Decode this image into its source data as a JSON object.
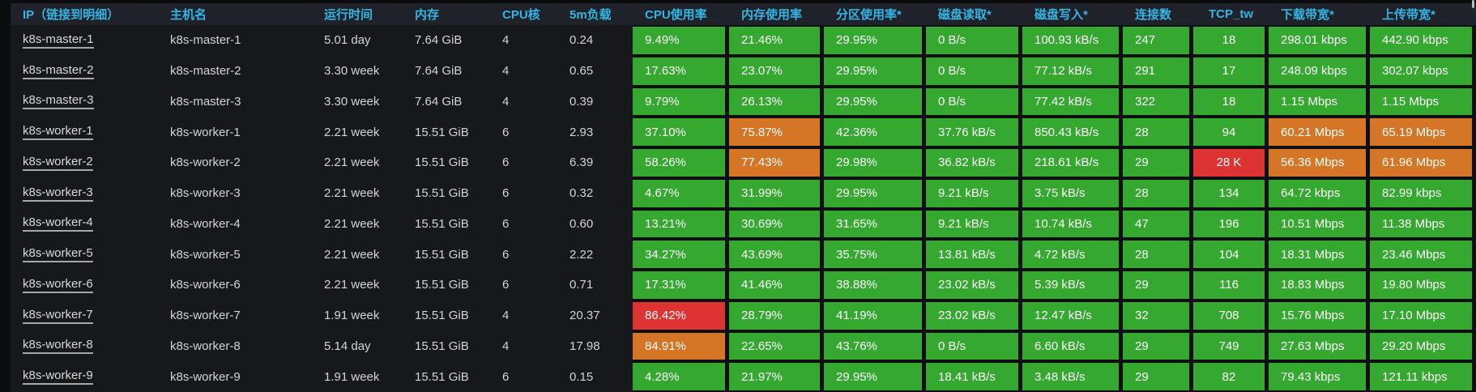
{
  "colors": {
    "green": "#34a82f",
    "orange": "#d57526",
    "red": "#de3333",
    "header_text": "#33b5e5"
  },
  "table": {
    "columns": [
      {
        "key": "ip",
        "label": "IP（链接到明细）",
        "kind": "link"
      },
      {
        "key": "hostname",
        "label": "主机名",
        "kind": "text"
      },
      {
        "key": "uptime",
        "label": "运行时间",
        "kind": "text"
      },
      {
        "key": "memory",
        "label": "内存",
        "kind": "text"
      },
      {
        "key": "cpu_cores",
        "label": "CPU核",
        "kind": "text"
      },
      {
        "key": "load_5m",
        "label": "5m负载",
        "kind": "text"
      },
      {
        "key": "cpu_usage",
        "label": "CPU使用率",
        "kind": "metric"
      },
      {
        "key": "mem_usage",
        "label": "内存使用率",
        "kind": "metric"
      },
      {
        "key": "partition_usage",
        "label": "分区使用率*",
        "kind": "metric"
      },
      {
        "key": "disk_read",
        "label": "磁盘读取*",
        "kind": "metric"
      },
      {
        "key": "disk_write",
        "label": "磁盘写入*",
        "kind": "metric"
      },
      {
        "key": "connections",
        "label": "连接数",
        "kind": "metric"
      },
      {
        "key": "tcp_tw",
        "label": "TCP_tw",
        "kind": "metric",
        "align": "center"
      },
      {
        "key": "download_bw",
        "label": "下载带宽*",
        "kind": "metric"
      },
      {
        "key": "upload_bw",
        "label": "上传带宽*",
        "kind": "metric"
      }
    ],
    "rows": [
      {
        "ip": "k8s-master-1",
        "hostname": "k8s-master-1",
        "uptime": "5.01 day",
        "memory": "7.64 GiB",
        "cpu_cores": "4",
        "load_5m": "0.24",
        "cpu_usage": {
          "value": "9.49%",
          "status": "green"
        },
        "mem_usage": {
          "value": "21.46%",
          "status": "green"
        },
        "partition_usage": {
          "value": "29.95%",
          "status": "green"
        },
        "disk_read": {
          "value": "0 B/s",
          "status": "green"
        },
        "disk_write": {
          "value": "100.93 kB/s",
          "status": "green"
        },
        "connections": {
          "value": "247",
          "status": "green"
        },
        "tcp_tw": {
          "value": "18",
          "status": "green"
        },
        "download_bw": {
          "value": "298.01 kbps",
          "status": "green"
        },
        "upload_bw": {
          "value": "442.90 kbps",
          "status": "green"
        }
      },
      {
        "ip": "k8s-master-2",
        "hostname": "k8s-master-2",
        "uptime": "3.30 week",
        "memory": "7.64 GiB",
        "cpu_cores": "4",
        "load_5m": "0.65",
        "cpu_usage": {
          "value": "17.63%",
          "status": "green"
        },
        "mem_usage": {
          "value": "23.07%",
          "status": "green"
        },
        "partition_usage": {
          "value": "29.95%",
          "status": "green"
        },
        "disk_read": {
          "value": "0 B/s",
          "status": "green"
        },
        "disk_write": {
          "value": "77.12 kB/s",
          "status": "green"
        },
        "connections": {
          "value": "291",
          "status": "green"
        },
        "tcp_tw": {
          "value": "17",
          "status": "green"
        },
        "download_bw": {
          "value": "248.09 kbps",
          "status": "green"
        },
        "upload_bw": {
          "value": "302.07 kbps",
          "status": "green"
        }
      },
      {
        "ip": "k8s-master-3",
        "hostname": "k8s-master-3",
        "uptime": "3.30 week",
        "memory": "7.64 GiB",
        "cpu_cores": "4",
        "load_5m": "0.39",
        "cpu_usage": {
          "value": "9.79%",
          "status": "green"
        },
        "mem_usage": {
          "value": "26.13%",
          "status": "green"
        },
        "partition_usage": {
          "value": "29.95%",
          "status": "green"
        },
        "disk_read": {
          "value": "0 B/s",
          "status": "green"
        },
        "disk_write": {
          "value": "77.42 kB/s",
          "status": "green"
        },
        "connections": {
          "value": "322",
          "status": "green"
        },
        "tcp_tw": {
          "value": "18",
          "status": "green"
        },
        "download_bw": {
          "value": "1.15 Mbps",
          "status": "green"
        },
        "upload_bw": {
          "value": "1.15 Mbps",
          "status": "green"
        }
      },
      {
        "ip": "k8s-worker-1",
        "hostname": "k8s-worker-1",
        "uptime": "2.21 week",
        "memory": "15.51 GiB",
        "cpu_cores": "6",
        "load_5m": "2.93",
        "cpu_usage": {
          "value": "37.10%",
          "status": "green"
        },
        "mem_usage": {
          "value": "75.87%",
          "status": "orange"
        },
        "partition_usage": {
          "value": "42.36%",
          "status": "green"
        },
        "disk_read": {
          "value": "37.76 kB/s",
          "status": "green"
        },
        "disk_write": {
          "value": "850.43 kB/s",
          "status": "green"
        },
        "connections": {
          "value": "28",
          "status": "green"
        },
        "tcp_tw": {
          "value": "94",
          "status": "green"
        },
        "download_bw": {
          "value": "60.21 Mbps",
          "status": "orange"
        },
        "upload_bw": {
          "value": "65.19 Mbps",
          "status": "orange"
        }
      },
      {
        "ip": "k8s-worker-2",
        "hostname": "k8s-worker-2",
        "uptime": "2.21 week",
        "memory": "15.51 GiB",
        "cpu_cores": "6",
        "load_5m": "6.39",
        "cpu_usage": {
          "value": "58.26%",
          "status": "green"
        },
        "mem_usage": {
          "value": "77.43%",
          "status": "orange"
        },
        "partition_usage": {
          "value": "29.98%",
          "status": "green"
        },
        "disk_read": {
          "value": "36.82 kB/s",
          "status": "green"
        },
        "disk_write": {
          "value": "218.61 kB/s",
          "status": "green"
        },
        "connections": {
          "value": "29",
          "status": "green"
        },
        "tcp_tw": {
          "value": "28 K",
          "status": "red"
        },
        "download_bw": {
          "value": "56.36 Mbps",
          "status": "orange"
        },
        "upload_bw": {
          "value": "61.96 Mbps",
          "status": "orange"
        }
      },
      {
        "ip": "k8s-worker-3",
        "hostname": "k8s-worker-3",
        "uptime": "2.21 week",
        "memory": "15.51 GiB",
        "cpu_cores": "6",
        "load_5m": "0.32",
        "cpu_usage": {
          "value": "4.67%",
          "status": "green"
        },
        "mem_usage": {
          "value": "31.99%",
          "status": "green"
        },
        "partition_usage": {
          "value": "29.95%",
          "status": "green"
        },
        "disk_read": {
          "value": "9.21 kB/s",
          "status": "green"
        },
        "disk_write": {
          "value": "3.75 kB/s",
          "status": "green"
        },
        "connections": {
          "value": "28",
          "status": "green"
        },
        "tcp_tw": {
          "value": "134",
          "status": "green"
        },
        "download_bw": {
          "value": "64.72 kbps",
          "status": "green"
        },
        "upload_bw": {
          "value": "82.99 kbps",
          "status": "green"
        }
      },
      {
        "ip": "k8s-worker-4",
        "hostname": "k8s-worker-4",
        "uptime": "2.21 week",
        "memory": "15.51 GiB",
        "cpu_cores": "6",
        "load_5m": "0.60",
        "cpu_usage": {
          "value": "13.21%",
          "status": "green"
        },
        "mem_usage": {
          "value": "30.69%",
          "status": "green"
        },
        "partition_usage": {
          "value": "31.65%",
          "status": "green"
        },
        "disk_read": {
          "value": "9.21 kB/s",
          "status": "green"
        },
        "disk_write": {
          "value": "10.74 kB/s",
          "status": "green"
        },
        "connections": {
          "value": "47",
          "status": "green"
        },
        "tcp_tw": {
          "value": "196",
          "status": "green"
        },
        "download_bw": {
          "value": "10.51 Mbps",
          "status": "green"
        },
        "upload_bw": {
          "value": "11.38 Mbps",
          "status": "green"
        }
      },
      {
        "ip": "k8s-worker-5",
        "hostname": "k8s-worker-5",
        "uptime": "2.21 week",
        "memory": "15.51 GiB",
        "cpu_cores": "6",
        "load_5m": "2.22",
        "cpu_usage": {
          "value": "34.27%",
          "status": "green"
        },
        "mem_usage": {
          "value": "43.69%",
          "status": "green"
        },
        "partition_usage": {
          "value": "35.75%",
          "status": "green"
        },
        "disk_read": {
          "value": "13.81 kB/s",
          "status": "green"
        },
        "disk_write": {
          "value": "4.72 kB/s",
          "status": "green"
        },
        "connections": {
          "value": "28",
          "status": "green"
        },
        "tcp_tw": {
          "value": "104",
          "status": "green"
        },
        "download_bw": {
          "value": "18.31 Mbps",
          "status": "green"
        },
        "upload_bw": {
          "value": "23.46 Mbps",
          "status": "green"
        }
      },
      {
        "ip": "k8s-worker-6",
        "hostname": "k8s-worker-6",
        "uptime": "2.21 week",
        "memory": "15.51 GiB",
        "cpu_cores": "6",
        "load_5m": "0.71",
        "cpu_usage": {
          "value": "17.31%",
          "status": "green"
        },
        "mem_usage": {
          "value": "41.46%",
          "status": "green"
        },
        "partition_usage": {
          "value": "38.88%",
          "status": "green"
        },
        "disk_read": {
          "value": "23.02 kB/s",
          "status": "green"
        },
        "disk_write": {
          "value": "5.39 kB/s",
          "status": "green"
        },
        "connections": {
          "value": "29",
          "status": "green"
        },
        "tcp_tw": {
          "value": "116",
          "status": "green"
        },
        "download_bw": {
          "value": "18.83 Mbps",
          "status": "green"
        },
        "upload_bw": {
          "value": "19.80 Mbps",
          "status": "green"
        }
      },
      {
        "ip": "k8s-worker-7",
        "hostname": "k8s-worker-7",
        "uptime": "1.91 week",
        "memory": "15.51 GiB",
        "cpu_cores": "4",
        "load_5m": "20.37",
        "cpu_usage": {
          "value": "86.42%",
          "status": "red"
        },
        "mem_usage": {
          "value": "28.79%",
          "status": "green"
        },
        "partition_usage": {
          "value": "41.19%",
          "status": "green"
        },
        "disk_read": {
          "value": "23.02 kB/s",
          "status": "green"
        },
        "disk_write": {
          "value": "12.47 kB/s",
          "status": "green"
        },
        "connections": {
          "value": "32",
          "status": "green"
        },
        "tcp_tw": {
          "value": "708",
          "status": "green"
        },
        "download_bw": {
          "value": "15.76 Mbps",
          "status": "green"
        },
        "upload_bw": {
          "value": "17.10 Mbps",
          "status": "green"
        }
      },
      {
        "ip": "k8s-worker-8",
        "hostname": "k8s-worker-8",
        "uptime": "5.14 day",
        "memory": "15.51 GiB",
        "cpu_cores": "4",
        "load_5m": "17.98",
        "cpu_usage": {
          "value": "84.91%",
          "status": "orange"
        },
        "mem_usage": {
          "value": "22.65%",
          "status": "green"
        },
        "partition_usage": {
          "value": "43.76%",
          "status": "green"
        },
        "disk_read": {
          "value": "0 B/s",
          "status": "green"
        },
        "disk_write": {
          "value": "6.60 kB/s",
          "status": "green"
        },
        "connections": {
          "value": "29",
          "status": "green"
        },
        "tcp_tw": {
          "value": "749",
          "status": "green"
        },
        "download_bw": {
          "value": "27.63 Mbps",
          "status": "green"
        },
        "upload_bw": {
          "value": "29.20 Mbps",
          "status": "green"
        }
      },
      {
        "ip": "k8s-worker-9",
        "hostname": "k8s-worker-9",
        "uptime": "1.91 week",
        "memory": "15.51 GiB",
        "cpu_cores": "6",
        "load_5m": "0.15",
        "cpu_usage": {
          "value": "4.28%",
          "status": "green"
        },
        "mem_usage": {
          "value": "21.97%",
          "status": "green"
        },
        "partition_usage": {
          "value": "29.95%",
          "status": "green"
        },
        "disk_read": {
          "value": "18.41 kB/s",
          "status": "green"
        },
        "disk_write": {
          "value": "3.48 kB/s",
          "status": "green"
        },
        "connections": {
          "value": "29",
          "status": "green"
        },
        "tcp_tw": {
          "value": "82",
          "status": "green"
        },
        "download_bw": {
          "value": "79.43 kbps",
          "status": "green"
        },
        "upload_bw": {
          "value": "121.11 kbps",
          "status": "green"
        }
      }
    ]
  }
}
